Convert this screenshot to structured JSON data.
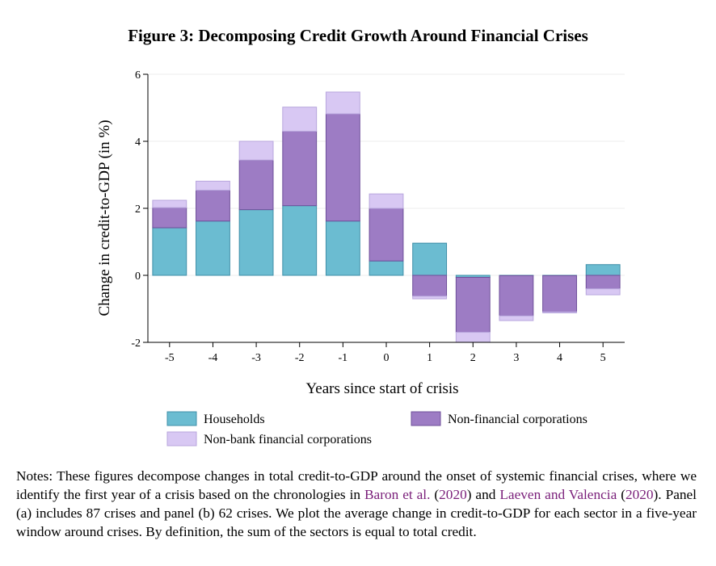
{
  "figure": {
    "title": "Figure 3: Decomposing Credit Growth Around Financial Crises"
  },
  "notes": {
    "part1": "Notes: These figures decompose changes in total credit-to-GDP around the onset of systemic financial crises, where we identify the first year of a crisis based on the chronologies in ",
    "cite1_name": "Baron et al.",
    "cite1_open": " (",
    "cite1_year": "2020",
    "cite1_close": ") and ",
    "cite2_name": "Laeven and Valencia",
    "cite2_open": " (",
    "cite2_year": "2020",
    "part2": "). Panel (a) includes 87 crises and panel (b) 62 crises. We plot the average change in credit-to-GDP for each sector in a five-year window around crises. By definition, the sum of the sectors is equal to total credit."
  },
  "chart_data": {
    "type": "bar",
    "stacked": true,
    "title": "",
    "xlabel": "Years since start of crisis",
    "ylabel": "Change in credit-to-GDP (in %)",
    "ylim": [
      -2,
      6
    ],
    "yticks": [
      -2,
      0,
      2,
      4,
      6
    ],
    "grid": true,
    "categories": [
      "-5",
      "-4",
      "-3",
      "-2",
      "-1",
      "0",
      "1",
      "2",
      "3",
      "4",
      "5"
    ],
    "series": [
      {
        "name": "Households",
        "color": "#6bbcd1",
        "values": [
          1.42,
          1.62,
          1.96,
          2.08,
          1.62,
          0.43,
          0.96,
          -0.06,
          -0.01,
          -0.01,
          0.32
        ]
      },
      {
        "name": "Non-financial corporations",
        "color": "#9d7cc4",
        "values": [
          0.6,
          0.92,
          1.48,
          2.22,
          3.2,
          1.57,
          -0.62,
          -1.64,
          -1.2,
          -1.08,
          -0.4
        ]
      },
      {
        "name": "Non-bank financial corporations",
        "color": "#d8c8f3",
        "values": [
          0.22,
          0.27,
          0.56,
          0.72,
          0.65,
          0.43,
          -0.08,
          -0.3,
          -0.14,
          -0.03,
          -0.18
        ]
      }
    ],
    "legend": {
      "placement": "bottom",
      "columns": 2
    }
  }
}
